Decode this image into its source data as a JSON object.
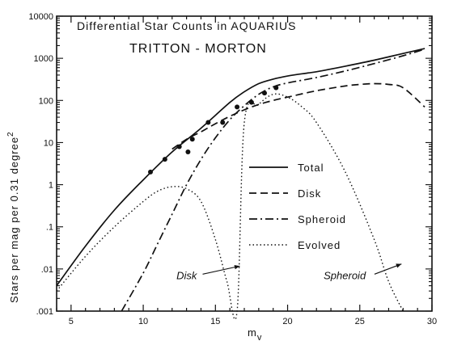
{
  "chart_data": {
    "type": "line",
    "title": "Differential Star Counts in AQUARIUS",
    "subtitle": "TRITTON - MORTON",
    "xlabel": "m",
    "xlabel_sub": "v",
    "ylabel": "Stars per mag per 0.31 degree",
    "ylabel_sup": "2",
    "xlim": [
      4,
      30
    ],
    "ylim": [
      0.001,
      10000
    ],
    "y_scale": "log",
    "grid": false,
    "x_ticks": [
      5,
      10,
      15,
      20,
      25,
      30
    ],
    "x_tick_labels": [
      "5",
      "10",
      "15",
      "20",
      "25",
      "30"
    ],
    "y_ticks": [
      0.001,
      0.01,
      0.1,
      1,
      10,
      100,
      1000,
      10000
    ],
    "y_tick_labels": [
      ".001",
      ".01",
      ".1",
      "1",
      "10",
      "100",
      "1000",
      "10000"
    ],
    "legend_position": "center-right",
    "series": [
      {
        "name": "Total",
        "style": "solid",
        "x": [
          4,
          6,
          8,
          10,
          12,
          14,
          16,
          17,
          18,
          19,
          20,
          21,
          22,
          24,
          26,
          28,
          29.5
        ],
        "y": [
          0.004,
          0.035,
          0.25,
          1.3,
          6,
          22,
          90,
          160,
          250,
          320,
          380,
          430,
          480,
          650,
          900,
          1300,
          1700
        ]
      },
      {
        "name": "Disk",
        "style": "dashed",
        "x": [
          12,
          13,
          14,
          15,
          16,
          17,
          18,
          19,
          20,
          22,
          24,
          25,
          26,
          27,
          28,
          29.5
        ],
        "y": [
          7,
          12,
          18,
          28,
          42,
          60,
          80,
          100,
          120,
          170,
          220,
          240,
          250,
          240,
          200,
          70
        ]
      },
      {
        "name": "Spheroid",
        "style": "dashdot",
        "x": [
          8.5,
          10,
          11,
          12,
          13,
          14,
          15,
          16,
          17,
          18,
          19,
          20,
          22,
          24,
          26,
          28,
          29.5
        ],
        "y": [
          0.001,
          0.008,
          0.04,
          0.2,
          1,
          4,
          13,
          35,
          75,
          140,
          210,
          260,
          350,
          500,
          750,
          1150,
          1650
        ]
      },
      {
        "name": "Evolved",
        "style": "dotted",
        "x": [
          4,
          6,
          8,
          10,
          11,
          12,
          13,
          14,
          15,
          15.8,
          16.5,
          17,
          18,
          19,
          20,
          21,
          22,
          24,
          26,
          27,
          28
        ],
        "y": [
          0.003,
          0.02,
          0.1,
          0.4,
          0.7,
          0.9,
          0.8,
          0.4,
          0.05,
          0.005,
          0.001,
          30,
          80,
          140,
          120,
          70,
          30,
          2,
          0.05,
          0.005,
          0.001
        ]
      }
    ],
    "observed_points": {
      "x": [
        10.5,
        11.5,
        12.5,
        13.1,
        13.4,
        14.5,
        15.5,
        16.5,
        17.5,
        18.4,
        19.2
      ],
      "y": [
        2,
        4,
        8,
        6,
        12,
        30,
        30,
        70,
        90,
        150,
        200
      ]
    },
    "annotations": [
      {
        "text": "Disk",
        "point_x": 16.8,
        "point_y": 0.0025,
        "text_x": 12.3,
        "text_y": 0.002
      },
      {
        "text": "Spheroid",
        "point_x": 28,
        "point_y": 0.0028,
        "text_x": 22.5,
        "text_y": 0.002
      }
    ]
  }
}
